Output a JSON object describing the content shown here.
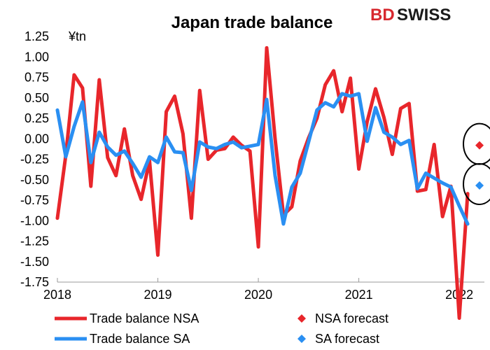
{
  "chart_data": {
    "type": "line",
    "title": "Japan trade balance",
    "unit_label": "¥tn",
    "brand": {
      "part1": "BD",
      "part2": "SWISS"
    },
    "ylim": [
      -1.75,
      1.25
    ],
    "y_ticks": [
      "1.25",
      "1.00",
      "0.75",
      "0.50",
      "0.25",
      "0.00",
      "-0.25",
      "-0.50",
      "-0.75",
      "-1.00",
      "-1.25",
      "-1.50",
      "-1.75"
    ],
    "x_ticks": [
      "2018",
      "2019",
      "2020",
      "2021",
      "2022"
    ],
    "x_start": "2018-01",
    "x_end": "2022-04",
    "colors": {
      "nsa": "#e8262b",
      "sa": "#2a8ff2"
    },
    "series": [
      {
        "name": "Trade balance NSA",
        "values": [
          -0.97,
          -0.2,
          0.78,
          0.62,
          -0.58,
          0.72,
          -0.23,
          -0.45,
          0.12,
          -0.45,
          -0.74,
          -0.27,
          -1.42,
          0.33,
          0.52,
          0.06,
          -0.97,
          0.59,
          -0.25,
          -0.14,
          -0.12,
          0.02,
          -0.08,
          -0.15,
          -1.32,
          1.11,
          0.0,
          -0.93,
          -0.83,
          -0.27,
          0.01,
          0.25,
          0.66,
          0.83,
          0.33,
          0.74,
          -0.37,
          0.21,
          0.61,
          0.26,
          -0.19,
          0.37,
          0.43,
          -0.64,
          -0.62,
          -0.07,
          -0.95,
          -0.58,
          -2.19,
          -0.67
        ]
      },
      {
        "name": "Trade balance SA",
        "values": [
          0.35,
          -0.22,
          0.15,
          0.45,
          -0.29,
          0.08,
          -0.1,
          -0.2,
          -0.15,
          -0.3,
          -0.47,
          -0.22,
          -0.29,
          0.02,
          -0.16,
          -0.17,
          -0.63,
          -0.04,
          -0.1,
          -0.12,
          -0.07,
          -0.04,
          -0.11,
          -0.09,
          -0.07,
          0.48,
          -0.45,
          -1.04,
          -0.59,
          -0.42,
          -0.04,
          0.35,
          0.44,
          0.39,
          0.55,
          0.52,
          0.55,
          -0.03,
          0.38,
          0.08,
          0.02,
          -0.07,
          -0.02,
          -0.61,
          -0.42,
          -0.48,
          -0.54,
          -0.59,
          -0.82,
          -1.04
        ]
      }
    ],
    "forecasts": [
      {
        "name": "NSA forecast",
        "date": "2022-03",
        "value": -0.08
      },
      {
        "name": "SA forecast",
        "date": "2022-03",
        "value": -0.57
      }
    ]
  }
}
